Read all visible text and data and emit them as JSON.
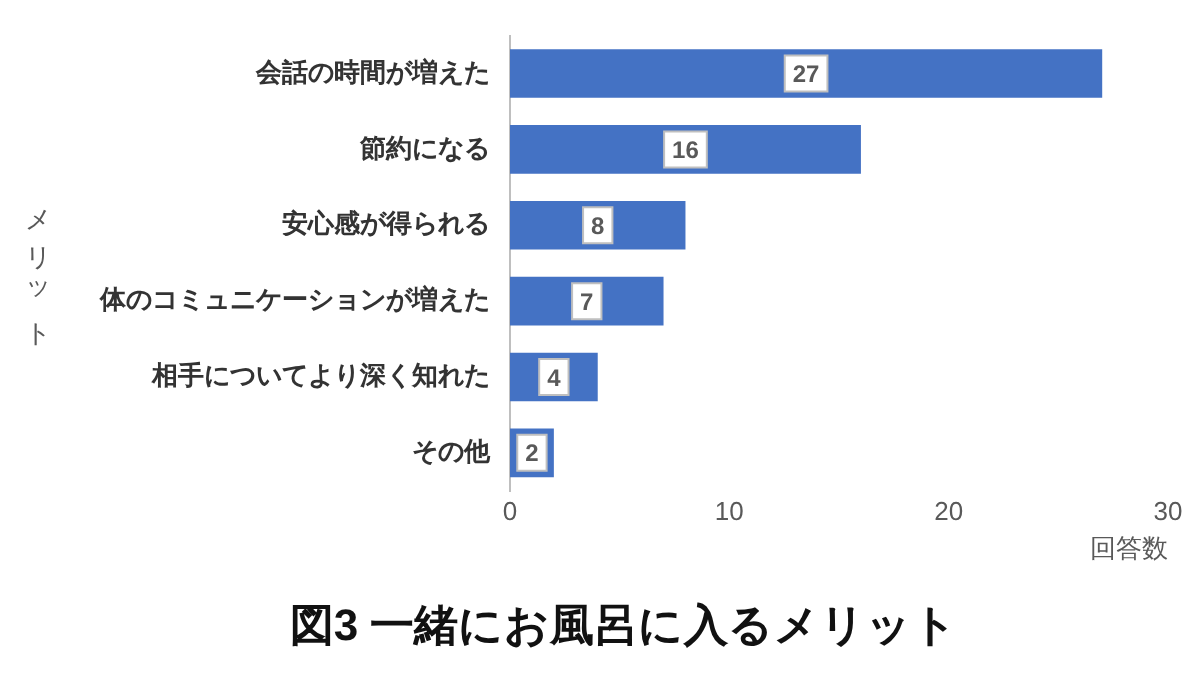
{
  "chart_data": {
    "type": "bar",
    "orientation": "horizontal",
    "title": "図3 一緒にお風呂に入るメリット",
    "xlabel": "回答数",
    "ylabel": "メリット",
    "categories": [
      "会話の時間が増えた",
      "節約になる",
      "安心感が得られる",
      "体のコミュニケーションが増えた",
      "相手についてより深く知れた",
      "その他"
    ],
    "values": [
      27,
      16,
      8,
      7,
      4,
      2
    ],
    "color": "#4472c4",
    "xlim": [
      0,
      30
    ],
    "xticks": [
      0,
      10,
      20,
      30
    ],
    "grid": false,
    "data_labels": true
  }
}
